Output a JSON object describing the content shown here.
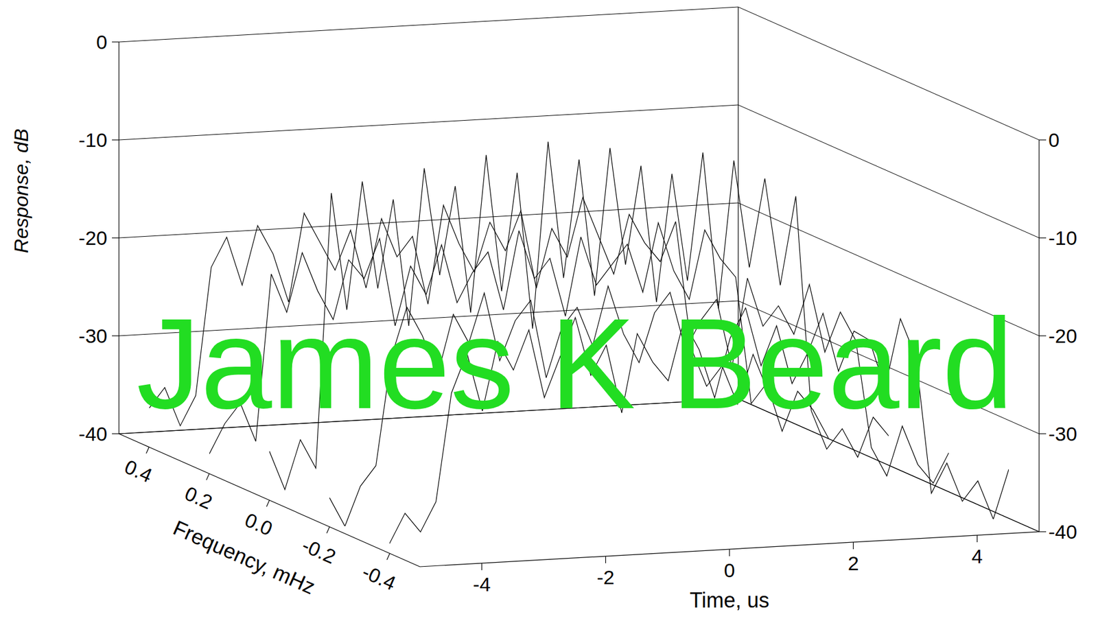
{
  "chart_data": {
    "type": "surface",
    "xlabel": "Time, us",
    "ylabel": "Frequency, mHz",
    "zlabel": "Response, dB",
    "color": "#000000",
    "grid": true,
    "x": [
      -5,
      -4.75,
      -4.5,
      -4.25,
      -4,
      -3.75,
      -3.5,
      -3.25,
      -3,
      -2.75,
      -2.5,
      -2.25,
      -2,
      -1.75,
      -1.5,
      -1.25,
      -1,
      -0.75,
      -0.5,
      -0.25,
      0,
      0.25,
      0.5,
      0.75,
      1,
      1.25,
      1.5,
      1.75,
      2,
      2.25,
      2.5,
      2.75,
      3,
      3.25,
      3.5,
      3.75,
      4,
      4.25,
      4.5,
      4.75,
      5
    ],
    "y": [
      0.4,
      0.2,
      0,
      -0.2,
      -0.4
    ],
    "z": [
      [
        -36,
        -34,
        -38,
        -35,
        -22,
        -19,
        -24,
        -18,
        -21,
        -26,
        -17,
        -20,
        -23,
        -19,
        -25,
        -18,
        -22,
        -20,
        -27,
        -17,
        -21,
        -24,
        -19,
        -22,
        -18,
        -26,
        -20,
        -23,
        -17,
        -21,
        -25,
        -19,
        -22,
        -24,
        -20,
        -33,
        -37,
        -35,
        -39,
        -34,
        -38
      ],
      [
        -38,
        -35,
        -33,
        -37,
        -20,
        -24,
        -18,
        -22,
        -25,
        -19,
        -21,
        -17,
        -26,
        -20,
        -23,
        -18,
        -24,
        -21,
        -19,
        -25,
        -17,
        -22,
        -20,
        -26,
        -18,
        -23,
        -21,
        -19,
        -24,
        -17,
        -22,
        -25,
        -18,
        -21,
        -23,
        -36,
        -34,
        -39,
        -35,
        -37,
        -40
      ],
      [
        -35,
        -39,
        -34,
        -37,
        -9,
        -21,
        -8,
        -19,
        -10,
        -23,
        -7,
        -18,
        -9,
        -22,
        -6,
        -20,
        -8,
        -24,
        -5,
        -19,
        -7,
        -21,
        -6,
        -18,
        -8,
        -22,
        -9,
        -20,
        -7,
        -23,
        -8,
        -19,
        -10,
        -21,
        -12,
        -34,
        -38,
        -36,
        -39,
        -35,
        -37
      ],
      [
        -37,
        -40,
        -36,
        -34,
        -23,
        -18,
        -21,
        -25,
        -19,
        -22,
        -17,
        -24,
        -20,
        -18,
        -26,
        -21,
        -19,
        -23,
        -17,
        -22,
        -25,
        -20,
        -18,
        -24,
        -21,
        -19,
        -26,
        -17,
        -22,
        -20,
        -23,
        -18,
        -25,
        -21,
        -24,
        -35,
        -38,
        -33,
        -37,
        -39,
        -36
      ],
      [
        -39,
        -36,
        -38,
        -35,
        -24,
        -20,
        -26,
        -19,
        -22,
        -18,
        -25,
        -21,
        -17,
        -23,
        -20,
        -27,
        -19,
        -22,
        -24,
        -18,
        -21,
        -26,
        -20,
        -17,
        -23,
        -19,
        -25,
        -22,
        -18,
        -24,
        -20,
        -21,
        -26,
        -19,
        -23,
        -37,
        -34,
        -38,
        -36,
        -40,
        -35
      ]
    ],
    "xlim": [
      -5,
      5
    ],
    "xticks": [
      -4,
      -2,
      0,
      2,
      4
    ],
    "ylim": [
      -0.5,
      0.5
    ],
    "yticks": [
      0.4,
      0.2,
      {
        "value": 0,
        "label": "0.0"
      },
      -0.2,
      -0.4
    ],
    "zlim": [
      -40,
      0
    ],
    "zticks": [
      -40,
      -30,
      -20,
      -10,
      0
    ],
    "annotations": [
      {
        "text": "James K Beard",
        "color": "#22dd22"
      }
    ]
  }
}
